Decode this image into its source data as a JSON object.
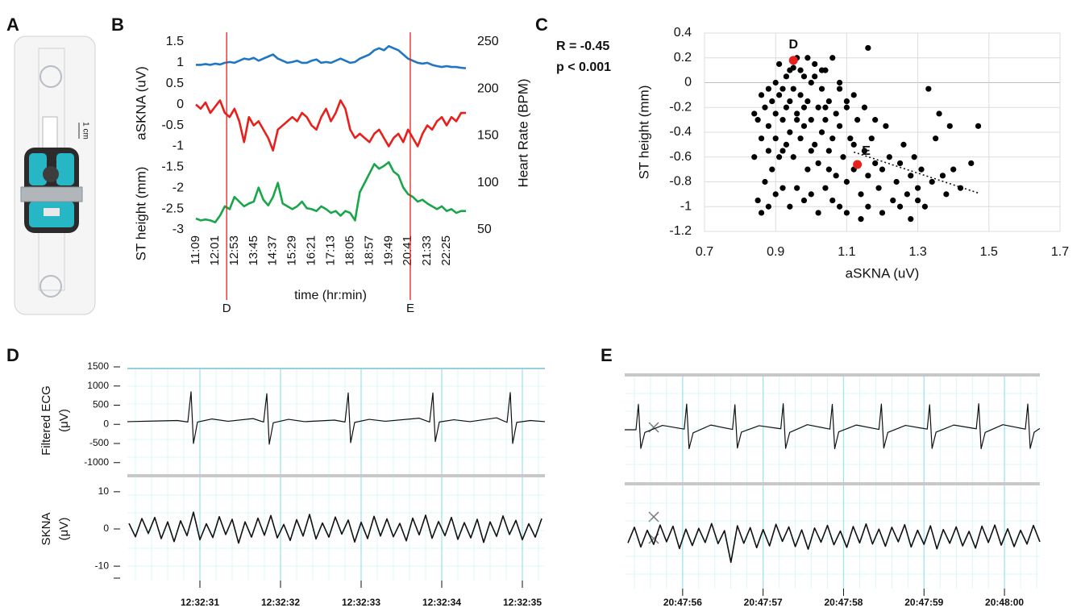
{
  "chart_data": [
    {
      "type": "image",
      "panel": "A",
      "scale_label": "1 cm"
    },
    {
      "type": "line",
      "panel": "B",
      "xlabel": "time (hr:min)",
      "x": [
        "11:09",
        "11:22",
        "11:35",
        "11:48",
        "12:01",
        "12:14",
        "12:27",
        "12:40",
        "12:53",
        "13:06",
        "13:19",
        "13:32",
        "13:45",
        "13:58",
        "14:11",
        "14:24",
        "14:37",
        "14:50",
        "15:03",
        "15:16",
        "15:29",
        "15:42",
        "15:55",
        "16:08",
        "16:21",
        "16:34",
        "16:47",
        "17:00",
        "17:13",
        "17:26",
        "17:39",
        "17:52",
        "18:05",
        "18:18",
        "18:31",
        "18:44",
        "18:57",
        "19:10",
        "19:23",
        "19:36",
        "19:49",
        "20:02",
        "20:15",
        "20:28",
        "20:41",
        "20:54",
        "21:07",
        "21:20",
        "21:33",
        "21:46",
        "21:59",
        "22:12",
        "22:25",
        "22:38",
        "22:51",
        "23:04",
        "23:17"
      ],
      "xticks": [
        "11:09",
        "12:01",
        "12:53",
        "13:45",
        "14:37",
        "15:29",
        "16:21",
        "17:13",
        "18:05",
        "18:57",
        "19:49",
        "20:41",
        "21:33",
        "22:25"
      ],
      "ylabels": [
        {
          "text": "ST height (mm)",
          "color": "#e8201c"
        },
        {
          "text": "aSKNA (uV)",
          "color": "#1f77c4"
        }
      ],
      "y2label": {
        "text": "Heart Rate (BPM)",
        "color": "#19a64a"
      },
      "ylim": [
        -3,
        1.5
      ],
      "yticks": [
        -3,
        -2.5,
        -2,
        -1.5,
        -1,
        -0.5,
        0,
        0.5,
        1,
        1.5
      ],
      "y2lim": [
        50,
        250
      ],
      "y2ticks": [
        50,
        100,
        150,
        200,
        250
      ],
      "series": [
        {
          "color": "#1f77c4",
          "values": [
            0.95,
            0.95,
            0.97,
            0.95,
            0.98,
            0.96,
            1.0,
            1.02,
            1.0,
            1.05,
            1.1,
            1.08,
            1.12,
            1.05,
            1.1,
            1.15,
            1.2,
            1.1,
            1.05,
            1.0,
            1.02,
            1.05,
            1.0,
            1.0,
            1.05,
            1.08,
            1.0,
            1.02,
            1.0,
            1.05,
            1.1,
            1.05,
            1.0,
            1.02,
            1.1,
            1.15,
            1.2,
            1.3,
            1.35,
            1.3,
            1.4,
            1.35,
            1.3,
            1.2,
            1.1,
            1.05,
            1.0,
            0.98,
            1.0,
            0.95,
            0.92,
            0.9,
            0.92,
            0.9,
            0.9,
            0.88,
            0.87
          ]
        },
        {
          "color": "#e8201c",
          "values": [
            0,
            -0.1,
            0.05,
            -0.2,
            -0.05,
            0.1,
            -0.2,
            -0.3,
            -0.1,
            -0.4,
            -0.9,
            -0.3,
            -0.5,
            -0.4,
            -0.6,
            -0.8,
            -1.1,
            -0.6,
            -0.5,
            -0.4,
            -0.3,
            -0.4,
            -0.2,
            -0.3,
            -0.5,
            -0.6,
            -0.3,
            -0.1,
            -0.4,
            -0.2,
            0.1,
            -0.1,
            -0.6,
            -0.8,
            -0.7,
            -0.8,
            -0.9,
            -0.7,
            -0.6,
            -0.8,
            -1.0,
            -0.8,
            -0.7,
            -0.9,
            -0.6,
            -0.8,
            -1.0,
            -0.7,
            -0.5,
            -0.6,
            -0.4,
            -0.3,
            -0.5,
            -0.3,
            -0.4,
            -0.2,
            -0.2
          ]
        },
        {
          "color": "#19a64a",
          "axis": "y2",
          "values": [
            62,
            60,
            61,
            60,
            58,
            65,
            75,
            72,
            85,
            80,
            75,
            78,
            80,
            95,
            82,
            76,
            85,
            100,
            78,
            75,
            72,
            75,
            80,
            73,
            72,
            70,
            75,
            72,
            68,
            70,
            65,
            70,
            68,
            60,
            90,
            100,
            110,
            120,
            115,
            118,
            122,
            112,
            108,
            95,
            88,
            85,
            80,
            82,
            78,
            75,
            72,
            75,
            70,
            72,
            68,
            70,
            70
          ]
        }
      ],
      "markers": [
        {
          "label": "D",
          "x": "12:32"
        },
        {
          "label": "E",
          "x": "20:47"
        }
      ],
      "marker_color": "#e8201c"
    },
    {
      "type": "scatter",
      "panel": "C",
      "annotations": [
        "R = -0.45",
        "p < 0.001"
      ],
      "xlabel": "aSKNA (uV)",
      "ylabel": "ST height (mm)",
      "xlim": [
        0.7,
        1.7
      ],
      "xticks": [
        0.7,
        0.9,
        1.1,
        1.3,
        1.5,
        1.7
      ],
      "ylim": [
        -1.2,
        0.4
      ],
      "yticks": [
        -1.2,
        -1,
        -0.8,
        -0.6,
        -0.4,
        -0.2,
        0,
        0.2,
        0.4
      ],
      "grid": true,
      "color": "#000000",
      "x": [
        0.84,
        0.85,
        0.86,
        0.87,
        0.88,
        0.88,
        0.89,
        0.9,
        0.9,
        0.9,
        0.91,
        0.91,
        0.92,
        0.92,
        0.93,
        0.93,
        0.94,
        0.94,
        0.95,
        0.95,
        0.96,
        0.96,
        0.97,
        0.97,
        0.98,
        0.98,
        0.99,
        0.99,
        1,
        1,
        1.01,
        1.01,
        1.02,
        1.02,
        1.03,
        1.03,
        1.04,
        1.04,
        1.05,
        1.05,
        1.06,
        1.06,
        1.07,
        1.07,
        1.08,
        1.08,
        1.09,
        1.1,
        1.1,
        1.11,
        1.12,
        1.12,
        1.13,
        1.14,
        1.15,
        1.16,
        1.16,
        1.17,
        1.18,
        1.19,
        1.2,
        1.21,
        1.22,
        1.23,
        1.24,
        1.25,
        1.26,
        1.27,
        1.28,
        1.29,
        1.3,
        1.31,
        1.32,
        1.33,
        1.34,
        1.35,
        1.36,
        1.37,
        1.38,
        1.4,
        1.42,
        1.45,
        1.47,
        1.39,
        0.84,
        0.85,
        0.86,
        0.87,
        0.88,
        0.89,
        0.9,
        0.92,
        0.94,
        0.96,
        0.98,
        1,
        1.02,
        1.04,
        1.06,
        1.08,
        1.1,
        1.14,
        1.16,
        1.2,
        1.25,
        1.28,
        1.3,
        0.95,
        0.97,
        0.99,
        1.01,
        1.03,
        0.93,
        0.91,
        1,
        1.05,
        1.12,
        1.18,
        1.1,
        0.96,
        0.98,
        0.94,
        0.92,
        1.04,
        1.08,
        1.15,
        0.86,
        0.88
      ],
      "y": [
        -0.25,
        -0.3,
        -0.1,
        -0.2,
        -0.05,
        -0.35,
        -0.15,
        0,
        -0.25,
        -0.45,
        0.15,
        -0.1,
        -0.3,
        -0.55,
        0.05,
        -0.2,
        -0.4,
        0.1,
        -0.05,
        -0.6,
        0.2,
        -0.25,
        -0.1,
        -0.45,
        0.05,
        -0.35,
        -0.15,
        -0.7,
        0,
        -0.3,
        -0.5,
        0.15,
        -0.2,
        -0.65,
        -0.05,
        -0.4,
        0.1,
        -0.3,
        -0.55,
        -0.15,
        0.2,
        -0.45,
        -0.25,
        -0.75,
        -0.05,
        -0.35,
        -0.6,
        -0.2,
        -0.8,
        -0.45,
        -0.1,
        -0.7,
        -0.3,
        -0.9,
        -0.55,
        -0.75,
        0.28,
        -0.45,
        -0.65,
        -0.85,
        -0.7,
        -0.35,
        -0.6,
        -0.95,
        -0.8,
        -0.65,
        -0.5,
        -0.9,
        -0.75,
        -0.6,
        -0.85,
        -0.7,
        -1,
        -0.05,
        -0.8,
        -0.45,
        -0.25,
        -0.75,
        -0.9,
        -0.7,
        -0.85,
        -0.65,
        -0.35,
        -0.35,
        -0.6,
        -0.95,
        -1.05,
        -0.8,
        -1,
        -0.7,
        -0.9,
        -0.85,
        -1,
        -0.85,
        -0.95,
        -0.9,
        -1.05,
        -0.85,
        -0.95,
        -1,
        -1.05,
        -1.1,
        -1,
        -1.05,
        -1,
        -1.1,
        -0.95,
        0.12,
        0.1,
        0.2,
        0.05,
        0.1,
        -0.5,
        -0.6,
        -0.55,
        -0.7,
        -0.5,
        -0.3,
        -0.15,
        -0.3,
        -0.2,
        -0.15,
        -0.05,
        -0.2,
        0,
        -0.2,
        -0.45,
        -0.55
      ],
      "highlights": [
        {
          "label": "D",
          "x": 0.95,
          "y": 0.18
        },
        {
          "label": "E",
          "x": 1.13,
          "y": -0.66
        }
      ],
      "highlight_color": "#e8201c",
      "trendline": {
        "x": [
          1.12,
          1.47
        ],
        "y": [
          -0.56,
          -0.89
        ]
      }
    },
    {
      "type": "trace",
      "panel": "D",
      "xlim": [
        30.1,
        35.28
      ],
      "grid_color": "#9fe4ee",
      "color": "#111111",
      "xticks": [
        {
          "value": 31,
          "label": "12:32:31"
        },
        {
          "value": 32,
          "label": "12:32:32"
        },
        {
          "value": 33,
          "label": "12:32:33"
        },
        {
          "value": 34,
          "label": "12:32:34"
        },
        {
          "value": 35,
          "label": "12:32:35"
        }
      ],
      "plots": [
        {
          "ylabel": [
            "Filtered ECG",
            "(μV)"
          ],
          "ylim": [
            -1300,
            1500
          ],
          "yticks": [
            1500,
            1000,
            500,
            0,
            -500,
            -1000
          ],
          "x": [
            30.1,
            30.5,
            30.72,
            30.85,
            30.89,
            30.92,
            30.97,
            31.15,
            31.35,
            31.66,
            31.79,
            31.83,
            31.86,
            31.91,
            32.1,
            32.3,
            32.67,
            32.8,
            32.84,
            32.87,
            32.92,
            33.1,
            33.3,
            33.72,
            33.85,
            33.89,
            33.92,
            33.97,
            34.15,
            34.35,
            34.68,
            34.81,
            34.85,
            34.88,
            34.93,
            35.1,
            35.28
          ],
          "values": [
            70,
            90,
            100,
            60,
            850,
            -500,
            60,
            140,
            80,
            150,
            60,
            800,
            -520,
            40,
            130,
            70,
            110,
            60,
            820,
            -480,
            50,
            130,
            80,
            160,
            60,
            820,
            -450,
            60,
            120,
            70,
            170,
            50,
            830,
            -500,
            50,
            100,
            70
          ]
        },
        {
          "ylabel": [
            "SKNA",
            "(μV)"
          ],
          "ylim": [
            -13,
            13
          ],
          "yticks": [
            10,
            0,
            -10
          ],
          "x": [
            30.12,
            30.2,
            30.28,
            30.36,
            30.44,
            30.52,
            30.6,
            30.68,
            30.76,
            30.84,
            30.92,
            31,
            31.08,
            31.16,
            31.24,
            31.32,
            31.4,
            31.48,
            31.56,
            31.64,
            31.72,
            31.8,
            31.88,
            31.96,
            32.04,
            32.12,
            32.2,
            32.28,
            32.36,
            32.44,
            32.52,
            32.6,
            32.68,
            32.76,
            32.84,
            32.92,
            33,
            33.08,
            33.16,
            33.24,
            33.32,
            33.4,
            33.48,
            33.56,
            33.64,
            33.72,
            33.8,
            33.88,
            33.96,
            34.04,
            34.12,
            34.2,
            34.28,
            34.36,
            34.44,
            34.52,
            34.6,
            34.68,
            34.76,
            34.84,
            34.92,
            35,
            35.08,
            35.16,
            35.24
          ],
          "values": [
            1.5,
            -2.1,
            2.8,
            -1.2,
            3.1,
            -2.6,
            1.9,
            -3.4,
            2.2,
            -1.8,
            4.5,
            -2.9,
            1.4,
            -2.3,
            3.3,
            -1.5,
            2.6,
            -3.8,
            1.9,
            -2.2,
            2.9,
            -1.7,
            3.6,
            -2.4,
            1.2,
            -3.1,
            2.5,
            -1.9,
            3.9,
            -2.7,
            1.6,
            -2.2,
            3.2,
            -1.4,
            2.4,
            -3.5,
            1.8,
            -2.6,
            3.4,
            -1.9,
            2.7,
            -2.1,
            1.5,
            -3.2,
            2.9,
            -1.6,
            3.7,
            -2.5,
            2.0,
            -1.8,
            3.1,
            -2.8,
            1.7,
            -2.4,
            2.6,
            -3.6,
            1.9,
            -2.0,
            3.5,
            -1.5,
            2.3,
            -2.9,
            1.4,
            -2.2,
            2.8
          ]
        }
      ]
    },
    {
      "type": "trace",
      "panel": "E",
      "xlim": [
        55.28,
        60.44
      ],
      "grid_color": "#9fe4ee",
      "color": "#111111",
      "xticks": [
        {
          "value": 56,
          "label": "20:47:56"
        },
        {
          "value": 57,
          "label": "20:47:57"
        },
        {
          "value": 58,
          "label": "20:47:58"
        },
        {
          "value": 59,
          "label": "20:47:59"
        },
        {
          "value": 60,
          "label": "20:48:00"
        }
      ],
      "plots": [
        {
          "ylim": [
            -1500,
            1500
          ],
          "x": [
            55.28,
            55.42,
            55.45,
            55.48,
            55.53,
            55.75,
            56.02,
            56.05,
            56.08,
            56.13,
            56.35,
            56.62,
            56.65,
            56.68,
            56.73,
            56.95,
            57.22,
            57.25,
            57.28,
            57.33,
            57.55,
            57.83,
            57.86,
            57.89,
            57.94,
            58.16,
            58.44,
            58.47,
            58.5,
            58.55,
            58.77,
            59.04,
            59.07,
            59.1,
            59.15,
            59.37,
            59.65,
            59.68,
            59.71,
            59.76,
            59.98,
            60.26,
            60.29,
            60.32,
            60.37,
            60.44
          ],
          "values": [
            0,
            0,
            750,
            -550,
            -80,
            130,
            20,
            760,
            -560,
            -90,
            140,
            10,
            740,
            -540,
            -70,
            120,
            30,
            770,
            -550,
            -80,
            150,
            20,
            750,
            -560,
            -60,
            140,
            10,
            760,
            -540,
            -80,
            130,
            20,
            740,
            -550,
            -70,
            140,
            30,
            770,
            -560,
            -80,
            150,
            20,
            760,
            -550,
            -70,
            40
          ]
        },
        {
          "ylim": [
            -13,
            13
          ],
          "x": [
            55.32,
            55.4,
            55.48,
            55.56,
            55.64,
            55.72,
            55.8,
            55.88,
            55.96,
            56.04,
            56.12,
            56.2,
            56.28,
            56.36,
            56.44,
            56.52,
            56.6,
            56.68,
            56.76,
            56.84,
            56.92,
            57,
            57.08,
            57.16,
            57.24,
            57.32,
            57.4,
            57.48,
            57.56,
            57.64,
            57.72,
            57.8,
            57.88,
            57.96,
            58.04,
            58.12,
            58.2,
            58.28,
            58.36,
            58.44,
            58.52,
            58.6,
            58.68,
            58.76,
            58.84,
            58.92,
            59,
            59.08,
            59.16,
            59.24,
            59.32,
            59.4,
            59.48,
            59.56,
            59.64,
            59.72,
            59.8,
            59.88,
            59.96,
            60.04,
            60.12,
            60.2,
            60.28,
            60.36,
            60.44
          ],
          "values": [
            -1.8,
            2.4,
            -2.9,
            1.6,
            -2.2,
            3.0,
            -1.5,
            2.7,
            -3.3,
            1.9,
            -2.5,
            2.1,
            -1.7,
            3.4,
            -2.0,
            1.5,
            -7.0,
            2.8,
            -1.9,
            2.3,
            -3.1,
            1.8,
            -2.6,
            3.2,
            -1.4,
            2.5,
            -2.8,
            1.7,
            -3.5,
            2.2,
            -1.6,
            2.9,
            -2.3,
            1.4,
            -3.0,
            2.6,
            -1.8,
            3.3,
            -2.1,
            1.9,
            -2.7,
            2.4,
            -1.5,
            3.1,
            -2.9,
            1.6,
            -2.2,
            2.8,
            -3.4,
            1.8,
            -1.9,
            2.5,
            -2.6,
            1.3,
            -3.2,
            2.7,
            -1.7,
            3.0,
            -2.4,
            2.0,
            -2.8,
            1.6,
            -2.1,
            2.9,
            -1.5
          ]
        }
      ]
    }
  ]
}
